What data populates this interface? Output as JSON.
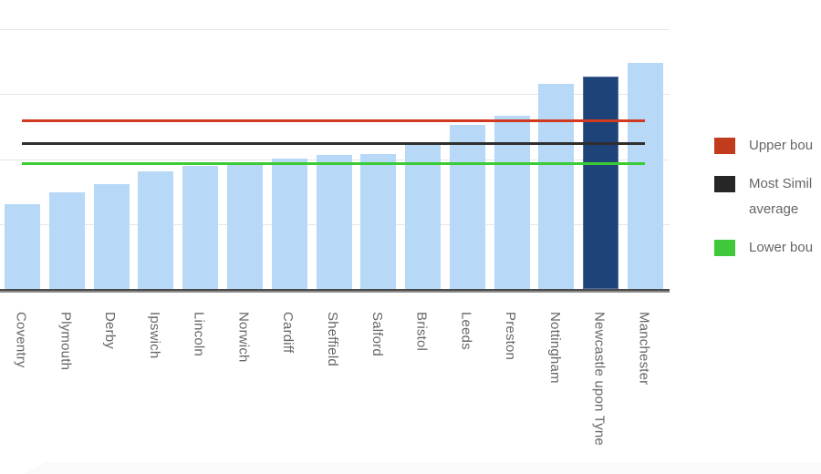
{
  "chart_data": {
    "type": "bar",
    "title": "",
    "xlabel": "",
    "ylabel": "",
    "categories": [
      "Coventry",
      "Plymouth",
      "Derby",
      "Ipswich",
      "Lincoln",
      "Norwich",
      "Cardiff",
      "Sheffield",
      "Salford",
      "Bristol",
      "Leeds",
      "Preston",
      "Nottingham",
      "Newcastle upon Tyne",
      "Manchester"
    ],
    "values": [
      1.3,
      1.49,
      1.61,
      1.81,
      1.89,
      1.94,
      2.01,
      2.06,
      2.08,
      2.22,
      2.52,
      2.67,
      3.16,
      3.27,
      3.48
    ],
    "highlight_category": "Newcastle upon Tyne",
    "reference_lines": [
      {
        "id": "upper",
        "value": 2.6,
        "color": "#d13a20"
      },
      {
        "id": "average",
        "value": 2.24,
        "color": "#2f2f2f"
      },
      {
        "id": "lower",
        "value": 1.94,
        "color": "#3bcc35"
      }
    ],
    "ylim": [
      0,
      4
    ],
    "gridline_step": 1,
    "y_axis_labels_visible": false,
    "grid": true,
    "legend_position": "right",
    "colors": {
      "bar": "#b7d8f7",
      "highlight_bar": "#1e4378",
      "highlight_bar_border": "#4f6da1",
      "gridline": "#e6e6e6",
      "axis_line": "#4a4a4a",
      "label_text": "#666666"
    }
  },
  "legend": {
    "items": [
      {
        "id": "upper",
        "swatch_color": "#c23b1d",
        "lines": [
          "Upper bou"
        ]
      },
      {
        "id": "average",
        "swatch_color": "#262626",
        "lines": [
          "Most Simil",
          "average"
        ]
      },
      {
        "id": "lower",
        "swatch_color": "#3fc93a",
        "lines": [
          "Lower bou"
        ]
      }
    ]
  }
}
